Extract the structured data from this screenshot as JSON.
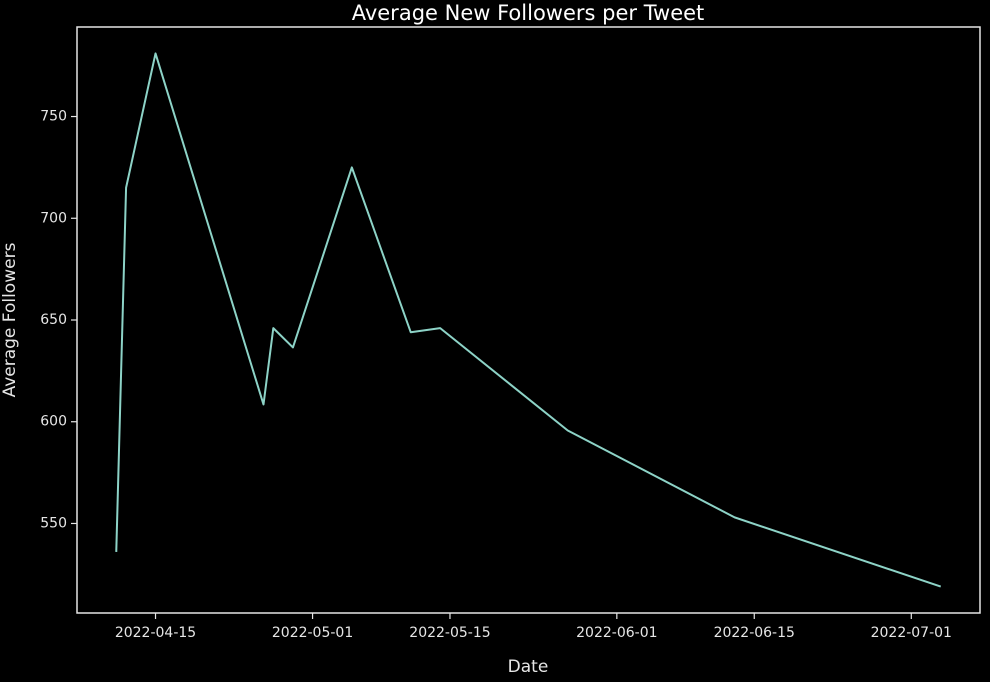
{
  "chart_data": {
    "type": "line",
    "title": "Average New Followers per Tweet",
    "x_label": "Date",
    "y_label": "Average Followers",
    "x": [
      "2022-04-11",
      "2022-04-12",
      "2022-04-15",
      "2022-04-26",
      "2022-04-27",
      "2022-04-29",
      "2022-05-05",
      "2022-05-11",
      "2022-05-14",
      "2022-05-27",
      "2022-06-13",
      "2022-07-04"
    ],
    "values": [
      536,
      715,
      781,
      608.5,
      646,
      636.5,
      725,
      644,
      646,
      595.7,
      553,
      519
    ],
    "color": "#8dd3c7",
    "xlim": [
      "2022-04-07",
      "2022-07-08"
    ],
    "xticks": [
      "2022-04-15",
      "2022-05-01",
      "2022-05-15",
      "2022-06-01",
      "2022-06-15",
      "2022-07-01"
    ],
    "ylim": [
      506,
      794
    ],
    "yticks": [
      550,
      600,
      650,
      700,
      750
    ]
  }
}
